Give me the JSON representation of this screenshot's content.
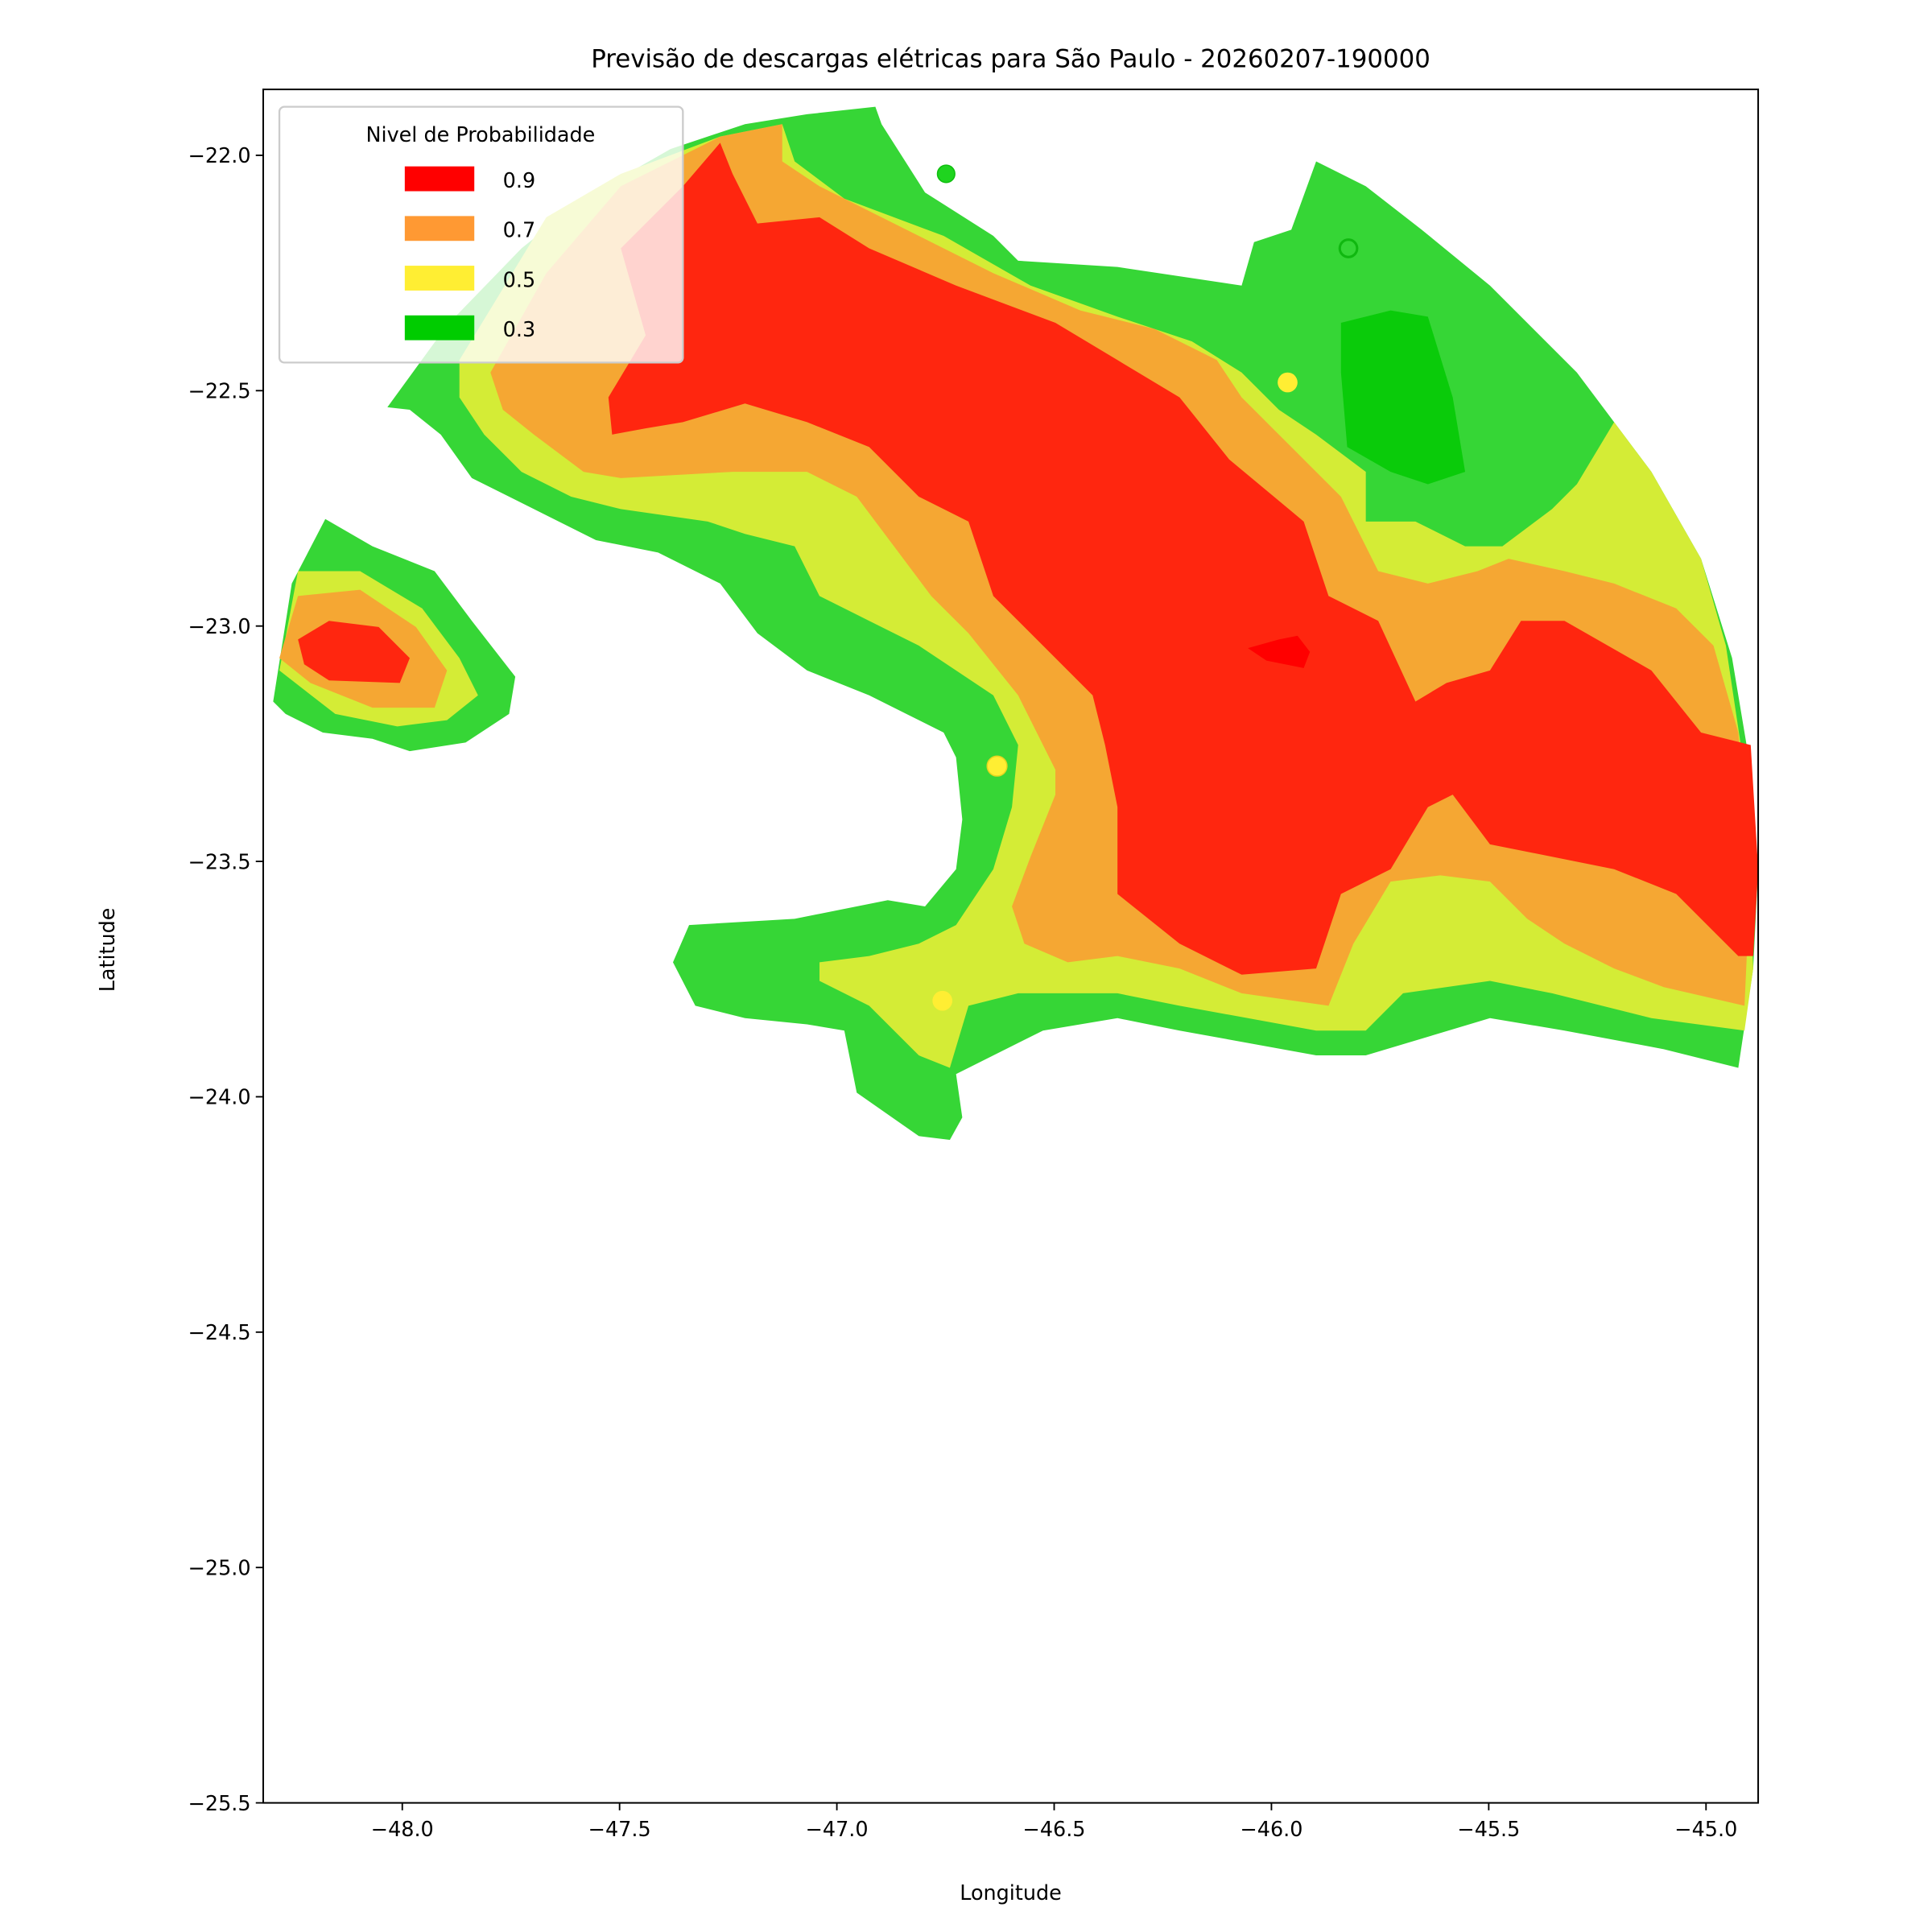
{
  "chart_data": {
    "type": "heatmap",
    "subtype": "filled-contour",
    "title": "Previsão de descargas elétricas para São Paulo - 20260207-190000",
    "xlabel": "Longitude",
    "ylabel": "Latitude",
    "xlim": [
      -48.32,
      -44.88
    ],
    "ylim": [
      -25.5,
      -21.86
    ],
    "xticks": [
      -48.0,
      -47.5,
      -47.0,
      -46.5,
      -46.0,
      -45.5,
      -45.0
    ],
    "xtick_labels": [
      "−48.0",
      "−47.5",
      "−47.0",
      "−46.5",
      "−46.0",
      "−45.5",
      "−45.0"
    ],
    "yticks": [
      -22.0,
      -22.5,
      -23.0,
      -23.5,
      -24.0,
      -24.5,
      -25.0,
      -25.5
    ],
    "ytick_labels": [
      "−22.0",
      "−22.5",
      "−23.0",
      "−23.5",
      "−24.0",
      "−24.5",
      "−25.0",
      "−25.5"
    ],
    "grid": false,
    "legend": {
      "title": "Nivel de Probabilidade",
      "placement": "top-left",
      "entries": [
        {
          "label": "0.9",
          "color": "#ff0000"
        },
        {
          "label": "0.7",
          "color": "#ff9933"
        },
        {
          "label": "0.5",
          "color": "#ffee33"
        },
        {
          "label": "0.3",
          "color": "#00cc00"
        }
      ]
    },
    "levels": [
      0.3,
      0.5,
      0.7,
      0.9
    ],
    "fill_colors": {
      "low_green": "#36d636",
      "yellow": "#d4ec36",
      "orange": "#f5a733",
      "red": "#ff260f",
      "dark_green": "#0acb0a"
    },
    "regions": [
      {
        "name": "main-cell",
        "max_level": 0.9,
        "center_lon": -46.3,
        "center_lat": -22.9
      },
      {
        "name": "west-cell",
        "max_level": 0.9,
        "center_lon": -48.1,
        "center_lat": -23.05
      }
    ]
  }
}
